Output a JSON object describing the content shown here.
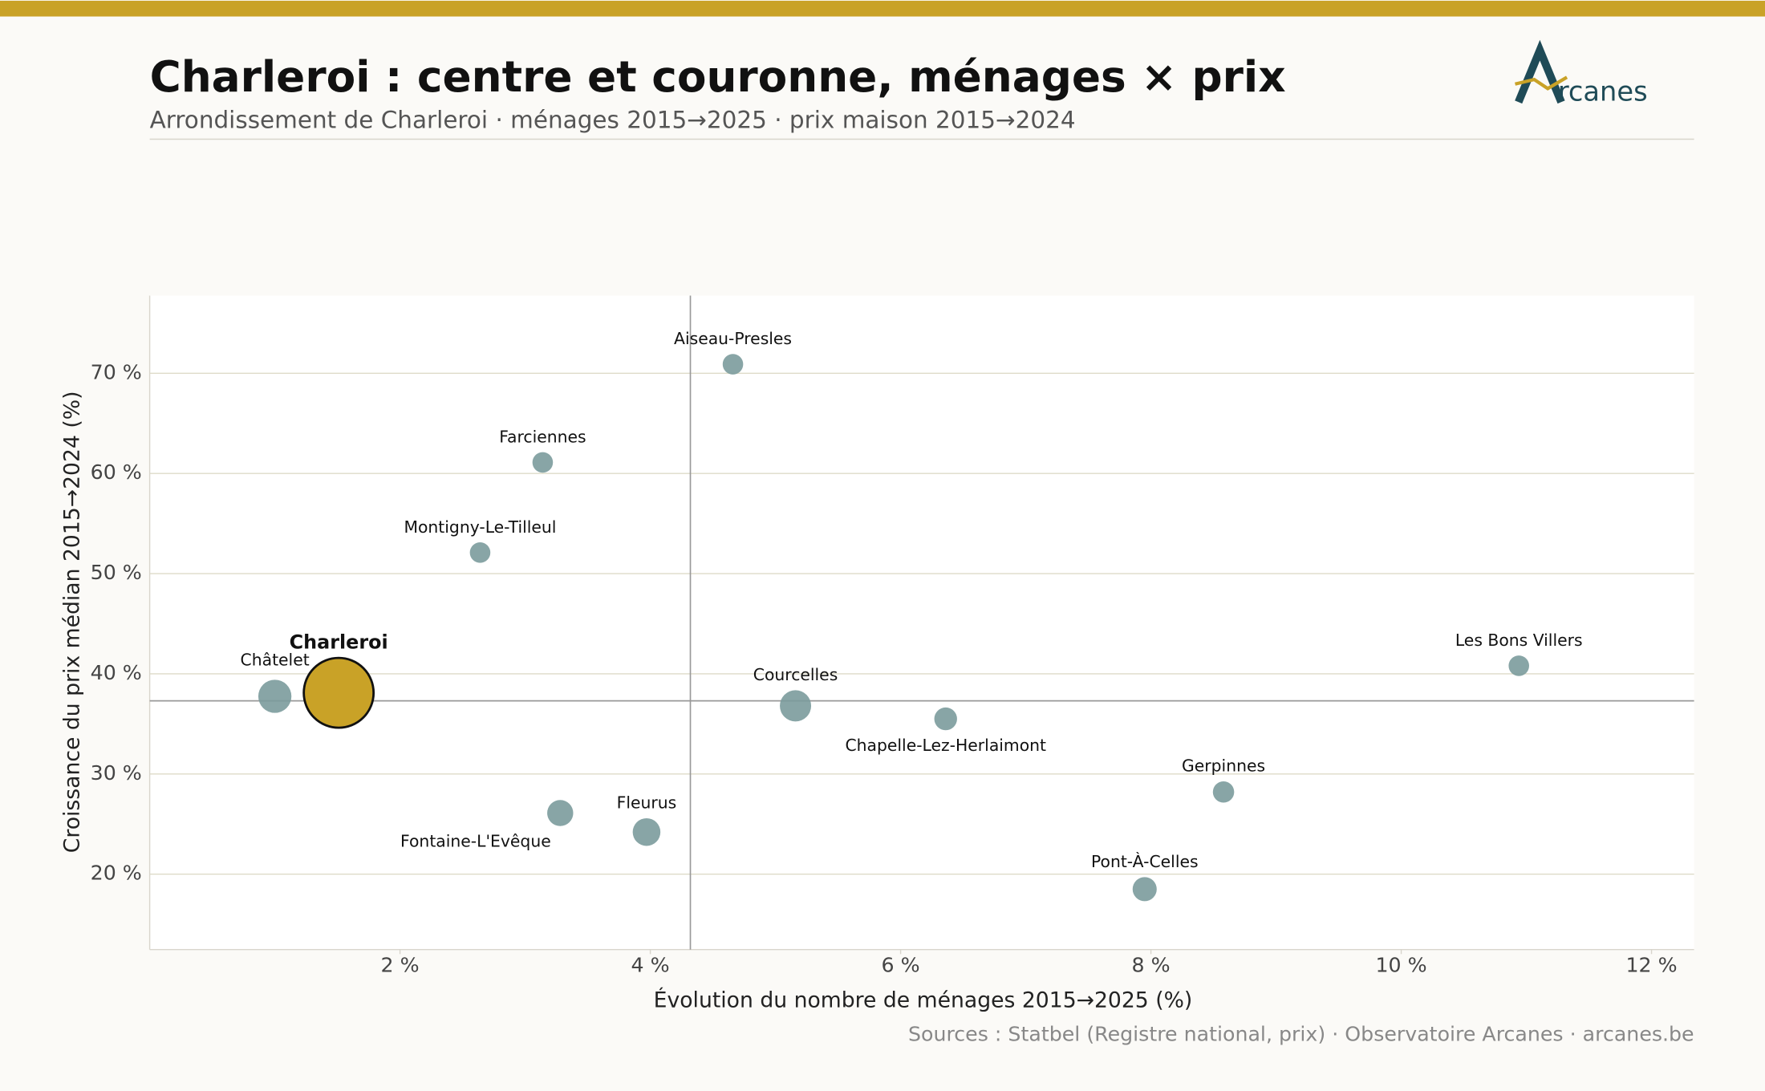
{
  "chart_data": {
    "type": "scatter",
    "title": "Charleroi : centre et couronne, ménages × prix",
    "subtitle": "Arrondissement de Charleroi · ménages 2015→2025 · prix maison 2015→2024",
    "logo": "rcanes",
    "x_label": "Évolution du nombre de ménages 2015→2025 (%)",
    "y_label": "Croissance du prix médian 2015→2024 (%)",
    "source": "Sources : Statbel (Registre national, prix) · Observatoire Arcanes · arcanes.be",
    "xlim": [
      0,
      12.34
    ],
    "ylim": [
      12.47,
      77.75
    ],
    "xticks": [
      {
        "value": 2,
        "label": "2 %"
      },
      {
        "value": 4,
        "label": "4 %"
      },
      {
        "value": 6,
        "label": "6 %"
      },
      {
        "value": 8,
        "label": "8 %"
      },
      {
        "value": 10,
        "label": "10 %"
      },
      {
        "value": 12,
        "label": "12 %"
      }
    ],
    "yticks": [
      {
        "value": 20,
        "label": "20 %"
      },
      {
        "value": 30,
        "label": "30 %"
      },
      {
        "value": 40,
        "label": "40 %"
      },
      {
        "value": 50,
        "label": "50 %"
      },
      {
        "value": 60,
        "label": "60 %"
      },
      {
        "value": 70,
        "label": "70 %"
      }
    ],
    "grid": true,
    "x_ref": 4.32,
    "y_ref": 37.3,
    "points": [
      {
        "label": "Aiseau-Presles",
        "x": 4.66,
        "y": 70.9,
        "size": 5.0,
        "color": "#7b9b9c"
      },
      {
        "label": "Farciennes",
        "x": 3.14,
        "y": 61.1,
        "size": 5.0,
        "color": "#7b9b9c"
      },
      {
        "label": "Montigny-Le-Tilleul",
        "x": 2.64,
        "y": 52.1,
        "size": 5.0,
        "color": "#7b9b9c"
      },
      {
        "label": "Châtelet",
        "x": 1.0,
        "y": 37.75,
        "size": 16,
        "color": "#7b9b9c"
      },
      {
        "label": "Charleroi",
        "x": 1.51,
        "y": 38.1,
        "size": 95,
        "color": "#c9a227",
        "bold": true
      },
      {
        "label": "Courcelles",
        "x": 5.16,
        "y": 36.8,
        "size": 14,
        "color": "#7b9b9c"
      },
      {
        "label": "Chapelle-Lez-Herlaimont",
        "x": 6.36,
        "y": 35.5,
        "size": 6.5,
        "color": "#7b9b9c"
      },
      {
        "label": "Les Bons Villers",
        "x": 10.94,
        "y": 40.8,
        "size": 5.0,
        "color": "#7b9b9c"
      },
      {
        "label": "Gerpinnes",
        "x": 8.58,
        "y": 28.2,
        "size": 5.5,
        "color": "#7b9b9c"
      },
      {
        "label": "Pont-À-Celles",
        "x": 7.95,
        "y": 18.5,
        "size": 7.5,
        "color": "#7b9b9c"
      },
      {
        "label": "Fleurus",
        "x": 3.97,
        "y": 24.2,
        "size": 10.5,
        "color": "#7b9b9c"
      },
      {
        "label": "Fontaine-L'Evêque",
        "x": 3.28,
        "y": 26.1,
        "size": 9,
        "color": "#7b9b9c"
      }
    ]
  }
}
